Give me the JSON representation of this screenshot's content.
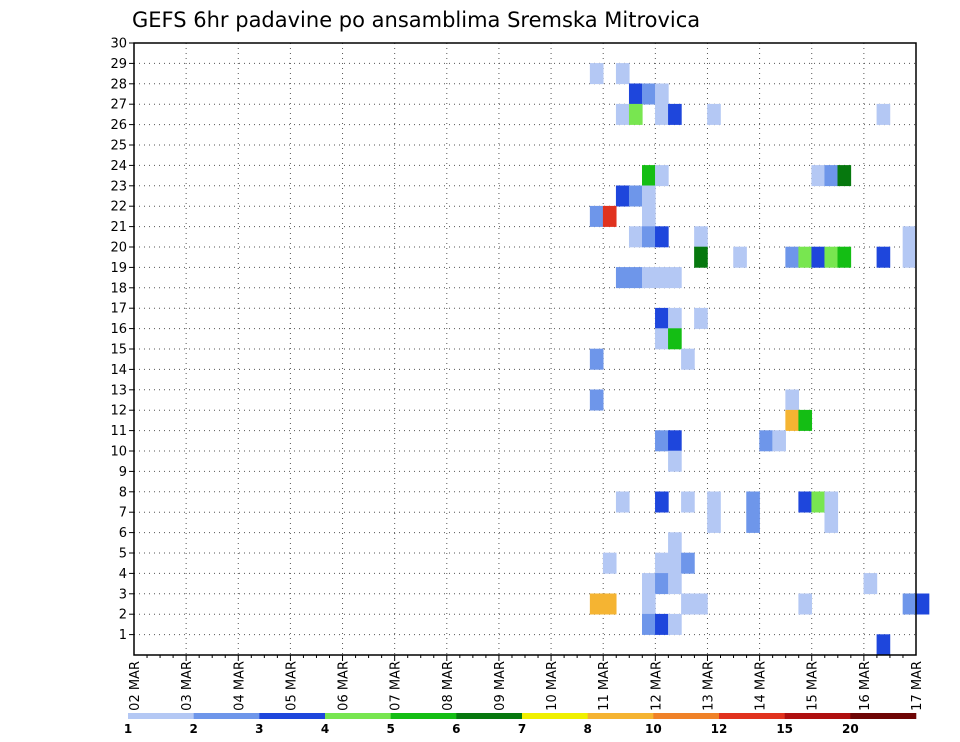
{
  "chart_data": {
    "type": "heatmap",
    "title": "GEFS 6hr padavine po ansamblima Sremska Mitrovica",
    "xlabel": "",
    "ylabel": "",
    "x_tick_labels": [
      "02 MAR",
      "03 MAR",
      "04 MAR",
      "05 MAR",
      "06 MAR",
      "07 MAR",
      "08 MAR",
      "09 MAR",
      "10 MAR",
      "11 MAR",
      "12 MAR",
      "13 MAR",
      "14 MAR",
      "15 MAR",
      "16 MAR",
      "17 MAR"
    ],
    "x_range_days": [
      0,
      15
    ],
    "y_tick_labels": [
      "1",
      "2",
      "3",
      "4",
      "5",
      "6",
      "7",
      "8",
      "9",
      "10",
      "11",
      "12",
      "13",
      "14",
      "15",
      "16",
      "17",
      "18",
      "19",
      "20",
      "21",
      "22",
      "23",
      "24",
      "25",
      "26",
      "27",
      "28",
      "29",
      "30"
    ],
    "y_range": [
      0,
      30
    ],
    "grid": true,
    "legend_position": "bottom",
    "colorbar": {
      "labels": [
        "1",
        "2",
        "3",
        "4",
        "5",
        "6",
        "7",
        "8",
        "10",
        "12",
        "15",
        "20"
      ],
      "colors": [
        "#b4c8f4",
        "#6e96ea",
        "#1e46dc",
        "#78e650",
        "#14be14",
        "#06780e",
        "#f0f000",
        "#f5b432",
        "#f08228",
        "#e1321e",
        "#af0f0f",
        "#6e0505"
      ]
    },
    "cells": [
      {
        "day": 8.75,
        "member": 29,
        "color": "#b4c8f4"
      },
      {
        "day": 9.25,
        "member": 29,
        "color": "#b4c8f4"
      },
      {
        "day": 9.5,
        "member": 28,
        "color": "#1e46dc"
      },
      {
        "day": 9.75,
        "member": 28,
        "color": "#6e96ea"
      },
      {
        "day": 10.0,
        "member": 28,
        "color": "#b4c8f4"
      },
      {
        "day": 9.25,
        "member": 27,
        "color": "#b4c8f4"
      },
      {
        "day": 9.5,
        "member": 27,
        "color": "#78e650"
      },
      {
        "day": 10.0,
        "member": 27,
        "color": "#b4c8f4"
      },
      {
        "day": 10.25,
        "member": 27,
        "color": "#1e46dc"
      },
      {
        "day": 11.0,
        "member": 27,
        "color": "#b4c8f4"
      },
      {
        "day": 14.25,
        "member": 27,
        "color": "#b4c8f4"
      },
      {
        "day": 9.75,
        "member": 24,
        "color": "#14be14"
      },
      {
        "day": 10.0,
        "member": 24,
        "color": "#b4c8f4"
      },
      {
        "day": 13.0,
        "member": 24,
        "color": "#b4c8f4"
      },
      {
        "day": 13.25,
        "member": 24,
        "color": "#6e96ea"
      },
      {
        "day": 13.5,
        "member": 24,
        "color": "#06780e"
      },
      {
        "day": 9.25,
        "member": 23,
        "color": "#1e46dc"
      },
      {
        "day": 9.5,
        "member": 23,
        "color": "#6e96ea"
      },
      {
        "day": 9.75,
        "member": 23,
        "color": "#b4c8f4"
      },
      {
        "day": 8.75,
        "member": 22,
        "color": "#6e96ea"
      },
      {
        "day": 9.0,
        "member": 22,
        "color": "#e1321e"
      },
      {
        "day": 9.75,
        "member": 22,
        "color": "#b4c8f4"
      },
      {
        "day": 9.5,
        "member": 21,
        "color": "#b4c8f4"
      },
      {
        "day": 9.75,
        "member": 21,
        "color": "#6e96ea"
      },
      {
        "day": 10.0,
        "member": 21,
        "color": "#1e46dc"
      },
      {
        "day": 10.75,
        "member": 21,
        "color": "#b4c8f4"
      },
      {
        "day": 14.75,
        "member": 21,
        "color": "#b4c8f4"
      },
      {
        "day": 10.75,
        "member": 20,
        "color": "#06780e"
      },
      {
        "day": 11.5,
        "member": 20,
        "color": "#b4c8f4"
      },
      {
        "day": 12.5,
        "member": 20,
        "color": "#6e96ea"
      },
      {
        "day": 12.75,
        "member": 20,
        "color": "#78e650"
      },
      {
        "day": 13.0,
        "member": 20,
        "color": "#1e46dc"
      },
      {
        "day": 13.25,
        "member": 20,
        "color": "#78e650"
      },
      {
        "day": 13.5,
        "member": 20,
        "color": "#14be14"
      },
      {
        "day": 14.25,
        "member": 20,
        "color": "#1e46dc"
      },
      {
        "day": 14.75,
        "member": 20,
        "color": "#b4c8f4"
      },
      {
        "day": 9.25,
        "member": 19,
        "color": "#6e96ea"
      },
      {
        "day": 9.5,
        "member": 19,
        "color": "#6e96ea"
      },
      {
        "day": 9.75,
        "member": 19,
        "color": "#b4c8f4"
      },
      {
        "day": 10.0,
        "member": 19,
        "color": "#b4c8f4"
      },
      {
        "day": 10.25,
        "member": 19,
        "color": "#b4c8f4"
      },
      {
        "day": 10.0,
        "member": 17,
        "color": "#1e46dc"
      },
      {
        "day": 10.25,
        "member": 17,
        "color": "#b4c8f4"
      },
      {
        "day": 10.75,
        "member": 17,
        "color": "#b4c8f4"
      },
      {
        "day": 10.0,
        "member": 16,
        "color": "#b4c8f4"
      },
      {
        "day": 10.25,
        "member": 16,
        "color": "#14be14"
      },
      {
        "day": 8.75,
        "member": 15,
        "color": "#6e96ea"
      },
      {
        "day": 10.5,
        "member": 15,
        "color": "#b4c8f4"
      },
      {
        "day": 8.75,
        "member": 13,
        "color": "#6e96ea"
      },
      {
        "day": 12.5,
        "member": 13,
        "color": "#b4c8f4"
      },
      {
        "day": 12.5,
        "member": 12,
        "color": "#f5b432"
      },
      {
        "day": 12.75,
        "member": 12,
        "color": "#14be14"
      },
      {
        "day": 10.0,
        "member": 11,
        "color": "#6e96ea"
      },
      {
        "day": 10.25,
        "member": 11,
        "color": "#1e46dc"
      },
      {
        "day": 12.0,
        "member": 11,
        "color": "#6e96ea"
      },
      {
        "day": 12.25,
        "member": 11,
        "color": "#b4c8f4"
      },
      {
        "day": 10.25,
        "member": 10,
        "color": "#b4c8f4"
      },
      {
        "day": 9.25,
        "member": 8,
        "color": "#b4c8f4"
      },
      {
        "day": 10.0,
        "member": 8,
        "color": "#1e46dc"
      },
      {
        "day": 10.5,
        "member": 8,
        "color": "#b4c8f4"
      },
      {
        "day": 11.0,
        "member": 8,
        "color": "#b4c8f4"
      },
      {
        "day": 11.75,
        "member": 8,
        "color": "#6e96ea"
      },
      {
        "day": 12.75,
        "member": 8,
        "color": "#1e46dc"
      },
      {
        "day": 13.0,
        "member": 8,
        "color": "#78e650"
      },
      {
        "day": 13.25,
        "member": 8,
        "color": "#b4c8f4"
      },
      {
        "day": 11.0,
        "member": 7,
        "color": "#b4c8f4"
      },
      {
        "day": 11.75,
        "member": 7,
        "color": "#6e96ea"
      },
      {
        "day": 13.25,
        "member": 7,
        "color": "#b4c8f4"
      },
      {
        "day": 10.25,
        "member": 6,
        "color": "#b4c8f4"
      },
      {
        "day": 9.0,
        "member": 5,
        "color": "#b4c8f4"
      },
      {
        "day": 10.0,
        "member": 5,
        "color": "#b4c8f4"
      },
      {
        "day": 10.25,
        "member": 5,
        "color": "#b4c8f4"
      },
      {
        "day": 10.5,
        "member": 5,
        "color": "#6e96ea"
      },
      {
        "day": 9.75,
        "member": 4,
        "color": "#b4c8f4"
      },
      {
        "day": 10.0,
        "member": 4,
        "color": "#6e96ea"
      },
      {
        "day": 10.25,
        "member": 4,
        "color": "#b4c8f4"
      },
      {
        "day": 14.0,
        "member": 4,
        "color": "#b4c8f4"
      },
      {
        "day": 8.75,
        "member": 3,
        "color": "#f5b432"
      },
      {
        "day": 9.0,
        "member": 3,
        "color": "#f5b432"
      },
      {
        "day": 9.75,
        "member": 3,
        "color": "#b4c8f4"
      },
      {
        "day": 10.5,
        "member": 3,
        "color": "#b4c8f4"
      },
      {
        "day": 10.75,
        "member": 3,
        "color": "#b4c8f4"
      },
      {
        "day": 12.75,
        "member": 3,
        "color": "#b4c8f4"
      },
      {
        "day": 14.75,
        "member": 3,
        "color": "#6e96ea"
      },
      {
        "day": 15.0,
        "member": 3,
        "color": "#1e46dc"
      },
      {
        "day": 9.75,
        "member": 2,
        "color": "#6e96ea"
      },
      {
        "day": 10.0,
        "member": 2,
        "color": "#1e46dc"
      },
      {
        "day": 10.25,
        "member": 2,
        "color": "#b4c8f4"
      },
      {
        "day": 14.25,
        "member": 1,
        "color": "#1e46dc"
      }
    ]
  }
}
